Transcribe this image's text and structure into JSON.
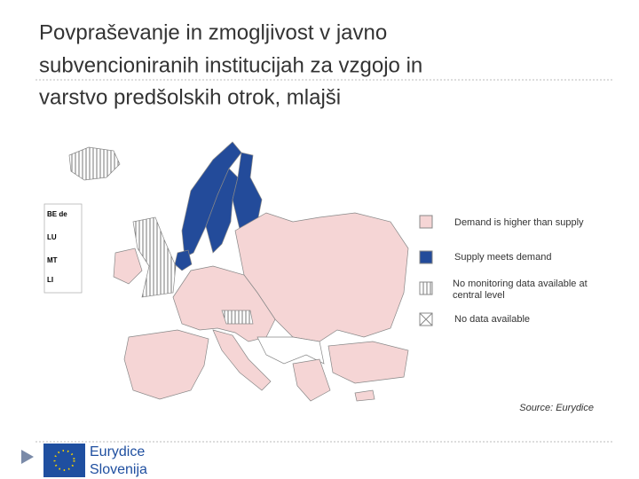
{
  "title": {
    "lines": [
      "Povpraševanje in zmogljivost v javno",
      "subvencioniranih institucijah za vzgojo in",
      "varstvo predšolskih otrok, mlajši"
    ]
  },
  "map": {
    "insets": [
      "BE de",
      "LU",
      "MT",
      "LI"
    ],
    "legend": [
      "Demand is higher than supply",
      "Supply meets demand",
      "No monitoring data available at central level",
      "No data available"
    ],
    "source": "Source: Eurydice"
  },
  "footer": {
    "logo_lines": [
      "Eurydice",
      "Slovenija"
    ]
  }
}
